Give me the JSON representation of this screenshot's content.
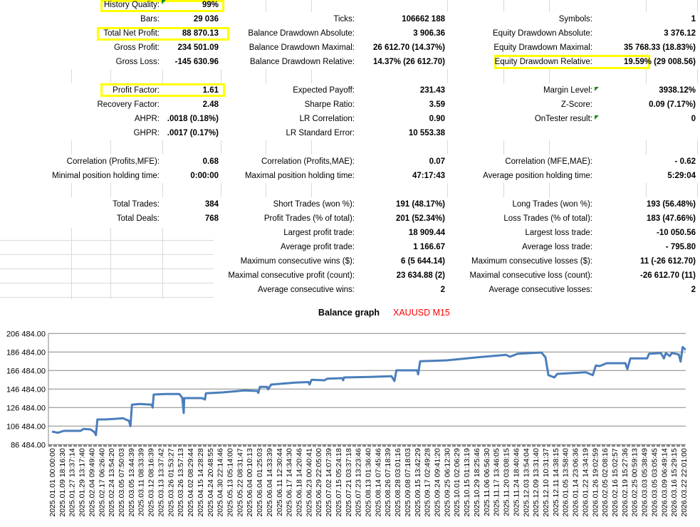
{
  "report": {
    "rows": [
      [
        {
          "label": "History Quality:",
          "value": "99%",
          "highlight": true,
          "flag": true
        },
        null,
        null
      ],
      [
        {
          "label": "Bars:",
          "value": "29 036"
        },
        {
          "label": "Ticks:",
          "value": "106662 188"
        },
        {
          "label": "Symbols:",
          "value": "1"
        }
      ],
      [
        {
          "label": "Total Net Profit:",
          "value": "88 870.13",
          "highlight": true
        },
        {
          "label": "Balance Drawdown Absolute:",
          "value": "3 906.36"
        },
        {
          "label": "Equity Drawdown Absolute:",
          "value": "3 376.12"
        }
      ],
      [
        {
          "label": "Gross Profit:",
          "value": "234 501.09"
        },
        {
          "label": "Balance Drawdown Maximal:",
          "value": "26 612.70 (14.37%)"
        },
        {
          "label": "Equity Drawdown Maximal:",
          "value": "35 768.33 (18.83%)"
        }
      ],
      [
        {
          "label": "Gross Loss:",
          "value": "-145 630.96"
        },
        {
          "label": "Balance Drawdown Relative:",
          "value": "14.37% (26 612.70)"
        },
        {
          "label": "Equity Drawdown Relative:",
          "value": "19.59% (29 008.56)",
          "highlight": true
        }
      ],
      [
        null,
        null,
        null
      ],
      [
        {
          "label": "Profit Factor:",
          "value": "1.61",
          "highlight": true
        },
        {
          "label": "Expected Payoff:",
          "value": "231.43"
        },
        {
          "label": "Margin Level:",
          "value": "3938.12%",
          "flag": true
        }
      ],
      [
        {
          "label": "Recovery Factor:",
          "value": "2.48"
        },
        {
          "label": "Sharpe Ratio:",
          "value": "3.59"
        },
        {
          "label": "Z-Score:",
          "value": "0.09 (7.17%)"
        }
      ],
      [
        {
          "label": "AHPR:",
          "value": ".0018 (0.18%)"
        },
        {
          "label": "LR Correlation:",
          "value": "0.90"
        },
        {
          "label": "OnTester result:",
          "value": "0",
          "flag": true
        }
      ],
      [
        {
          "label": "GHPR:",
          "value": ".0017 (0.17%)"
        },
        {
          "label": "LR Standard Error:",
          "value": "10 553.38"
        },
        null
      ],
      [
        null,
        null,
        null
      ],
      [
        {
          "label": "Correlation (Profits,MFE):",
          "value": "0.68"
        },
        {
          "label": "Correlation (Profits,MAE):",
          "value": "0.07"
        },
        {
          "label": "Correlation (MFE,MAE):",
          "value": "- 0.62"
        }
      ],
      [
        {
          "label": "Minimal position holding time:",
          "value": "0:00:00"
        },
        {
          "label": "Maximal position holding time:",
          "value": "47:17:43"
        },
        {
          "label": "Average position holding time:",
          "value": "5:29:04"
        }
      ],
      [
        null,
        null,
        null
      ],
      [
        {
          "label": "Total Trades:",
          "value": "384"
        },
        {
          "label": "Short Trades (won %):",
          "value": "191 (48.17%)"
        },
        {
          "label": "Long Trades (won %):",
          "value": "193 (56.48%)"
        }
      ],
      [
        {
          "label": "Total Deals:",
          "value": "768"
        },
        {
          "label": "Profit Trades (% of total):",
          "value": "201 (52.34%)"
        },
        {
          "label": "Loss Trades (% of total):",
          "value": "183 (47.66%)"
        }
      ],
      [
        null,
        {
          "label": "Largest profit trade:",
          "value": "18 909.44"
        },
        {
          "label": "Largest loss trade:",
          "value": "-10 050.56"
        }
      ],
      [
        null,
        {
          "label": "Average profit trade:",
          "value": "1 166.67"
        },
        {
          "label": "Average loss trade:",
          "value": "- 795.80"
        }
      ],
      [
        null,
        {
          "label": "Maximum consecutive wins ($):",
          "value": "6 (5 644.14)"
        },
        {
          "label": "Maximum consecutive losses ($):",
          "value": "11 (-26 612.70)"
        }
      ],
      [
        null,
        {
          "label": "Maximal consecutive profit (count):",
          "value": "23 634.88 (2)"
        },
        {
          "label": "Maximal consecutive loss (count):",
          "value": "-26 612.70 (11)"
        }
      ],
      [
        null,
        {
          "label": "Average consecutive wins:",
          "value": "2"
        },
        {
          "label": "Average consecutive losses:",
          "value": "2"
        }
      ]
    ]
  },
  "chart_data": {
    "type": "line",
    "title": "Balance graph",
    "subtitle": "XAUUSD M15",
    "subtitle_color": "#ff0000",
    "line_color": "#4a7ebb",
    "ylim": [
      86484,
      206484
    ],
    "yticks": [
      "206 484.00",
      "186 484.00",
      "166 484.00",
      "146 484.00",
      "126 484.00",
      "106 484.00",
      "86 484.00"
    ],
    "ytick_values": [
      206484,
      186484,
      166484,
      146484,
      126484,
      106484,
      86484
    ],
    "grid": true,
    "xlabels": [
      "2025.01.01 00:00:00",
      "2025.01.09 18:16:30",
      "2025.01.27 13:37:14",
      "2025.01.29 13:17:40",
      "2025.02.04 09:49:40",
      "2025.02.17 06:26:40",
      "2025.02.24 13:54:20",
      "2025.03.05 07:50:03",
      "2025.03.05 13:44:39",
      "2025.03.11 08:33:39",
      "2025.03.12 08:16:39",
      "2025.03.13 13:37:42",
      "2025.03.26 01:53:27",
      "2025.03.26 13:57:13",
      "2025.04.02 08:29:44",
      "2025.04.15 14:28:28",
      "2025.04.24 20:48:55",
      "2025.04.30 22:14:46",
      "2025.05.13 05:14:00",
      "2025.05.22 08:31:47",
      "2025.06.04 00:10:13",
      "2025.06.04 01:25:03",
      "2025.06.04 14:33:39",
      "2025.06.11 12:30:44",
      "2025.06.17 14:34:30",
      "2025.06.18 14:20:46",
      "2025.06.23 00:40:41",
      "2025.06.29 22:05:00",
      "2025.07.02 14:07:39",
      "2025.07.15 05:24:18",
      "2025.07.21 03:37:18",
      "2025.07.23 13:23:46",
      "2025.08.13 01:36:40",
      "2025.08.14 07:45:46",
      "2025.08.26 07:18:39",
      "2025.08.28 03:01:16",
      "2025.09.08 07:18:03",
      "2025.09.15 13:42:29",
      "2025.09.17 02:49:28",
      "2025.09.24 09:41:20",
      "2025.09.25 06:12:30",
      "2025.10.01 02:06:29",
      "2025.10.15 01:13:19",
      "2025.10.29 18:25:46",
      "2025.11.06 06:56:30",
      "2025.11.17 13:46:05",
      "2025.11.20 03:08:15",
      "2025.11.24 18:40:46",
      "2025.12.03 13:54:04",
      "2025.12.09 13:31:40",
      "2025.12.10 10:31:37",
      "2025.12.11 14:38:15",
      "2026.01.05 13:58:40",
      "2026.01.14 23:06:36",
      "2026.01.22 14:34:19",
      "2026.01.26 19:02:59",
      "2026.02.05 02:08:16",
      "2026.02.16 15:02:57",
      "2026.02.19 15:27:36",
      "2026.02.25 00:59:13",
      "2026.03.03 05:38:49",
      "2026.03.05 03:05:45",
      "2026.03.09 06:49:14",
      "2026.03.16 15:29:15",
      "2026.03.22 22:01:00"
    ],
    "series": [
      {
        "name": "Balance",
        "x": [
          0,
          0.6,
          1.2,
          2.9,
          3.2,
          3.9,
          4.3,
          4.45,
          4.6,
          5.3,
          6.3,
          7.2,
          7.8,
          7.95,
          8.1,
          8.9,
          10.1,
          10.2,
          10.3,
          11.5,
          12.9,
          13.2,
          13.35,
          13.4,
          15.2,
          15.5,
          15.6,
          17.3,
          19.5,
          20.8,
          20.9,
          21.07,
          21.8,
          21.9,
          22.2,
          24.6,
          26,
          26.1,
          26.3,
          27.6,
          27.9,
          29.4,
          29.5,
          29.6,
          32.3,
          34.4,
          34.7,
          34.9,
          37,
          37.1,
          37.3,
          40,
          43.1,
          46,
          46.4,
          47.2,
          49.6,
          50,
          50.3,
          50.9,
          51.2,
          54.1,
          54.8,
          55.1,
          55.5,
          56.2,
          58.1,
          58.3,
          58.6,
          60.3,
          60.5,
          61.7,
          62,
          62.2,
          62.6,
          62.8,
          63.5,
          63.7,
          63.9,
          64.2
        ],
        "values": [
          100560,
          99250,
          101330,
          101330,
          103400,
          102900,
          100000,
          96700,
          113640,
          113640,
          114170,
          114950,
          112100,
          106480,
          129560,
          130330,
          129560,
          126480,
          140560,
          141100,
          141100,
          137250,
          120560,
          136700,
          136700,
          135170,
          141870,
          142870,
          144940,
          144400,
          142330,
          148790,
          148790,
          146170,
          151330,
          153400,
          154000,
          151330,
          156480,
          155940,
          157700,
          158240,
          155940,
          159020,
          159560,
          160330,
          155170,
          166710,
          166710,
          162330,
          176480,
          177480,
          180790,
          183400,
          181400,
          184650,
          185940,
          180790,
          161560,
          159020,
          162870,
          164630,
          161560,
          171870,
          171350,
          174400,
          174400,
          168020,
          179560,
          179560,
          184650,
          185430,
          179560,
          185430,
          182100,
          185430,
          183870,
          176170,
          191860,
          188870
        ]
      }
    ]
  }
}
